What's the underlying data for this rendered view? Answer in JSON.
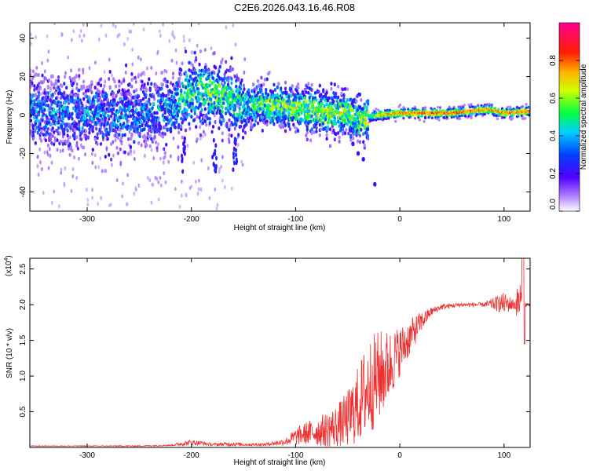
{
  "title": "C2E6.2026.043.16.46.R08",
  "chart_data": [
    {
      "type": "heatmap",
      "name": "spectrogram",
      "xlabel": "Height of straight line (km)",
      "ylabel": "Frequency (Hz)",
      "xlim": [
        -355,
        125
      ],
      "ylim": [
        -50,
        48
      ],
      "x_ticks": [
        -300,
        -200,
        -100,
        0,
        100
      ],
      "x_tick_labels": [
        "-300",
        "-200",
        "-100",
        "0",
        "100"
      ],
      "y_ticks": [
        -40,
        -20,
        0,
        20,
        40
      ],
      "y_tick_labels": [
        "-40",
        "-20",
        "0",
        "20",
        "40"
      ],
      "colorbar": {
        "label": "Normalized spectral amplitude",
        "range": [
          0,
          1
        ],
        "ticks": [
          0.0,
          0.2,
          0.4,
          0.6,
          0.8
        ],
        "tick_labels": [
          "0.0",
          "0.2",
          "0.4",
          "0.6",
          "0.8"
        ],
        "colors": [
          "#ffffff",
          "#7f00ff",
          "#0000ff",
          "#00c8ff",
          "#00ff00",
          "#ffff00",
          "#ff8000",
          "#ff0000",
          "#ff0080"
        ]
      },
      "ridge": [
        {
          "x": -350,
          "f": 2,
          "amp": 0.25
        },
        {
          "x": -300,
          "f": 1,
          "amp": 0.25
        },
        {
          "x": -250,
          "f": 1,
          "amp": 0.25
        },
        {
          "x": -215,
          "f": 3,
          "amp": 0.3
        },
        {
          "x": -205,
          "f": 11,
          "amp": 0.42
        },
        {
          "x": -190,
          "f": 12,
          "amp": 0.45
        },
        {
          "x": -170,
          "f": 10,
          "amp": 0.45
        },
        {
          "x": -150,
          "f": 4,
          "amp": 0.4
        },
        {
          "x": -130,
          "f": 6,
          "amp": 0.45
        },
        {
          "x": -110,
          "f": 4,
          "amp": 0.5
        },
        {
          "x": -90,
          "f": 3,
          "amp": 0.5
        },
        {
          "x": -70,
          "f": 1,
          "amp": 0.5
        },
        {
          "x": -50,
          "f": 1,
          "amp": 0.5
        },
        {
          "x": -40,
          "f": -3,
          "amp": 0.45
        },
        {
          "x": -30,
          "f": -1,
          "amp": 0.55
        },
        {
          "x": -20,
          "f": 0,
          "amp": 0.75
        },
        {
          "x": 0,
          "f": 1,
          "amp": 0.82
        },
        {
          "x": 50,
          "f": 1,
          "amp": 0.85
        },
        {
          "x": 85,
          "f": 3,
          "amp": 0.8
        },
        {
          "x": 100,
          "f": 1,
          "amp": 0.82
        },
        {
          "x": 125,
          "f": 2,
          "amp": 0.82
        }
      ]
    },
    {
      "type": "line",
      "name": "snr",
      "xlabel": "Height of straight line (km)",
      "ylabel": "SNR (10 * v/v)",
      "y_scale_label": "(x10",
      "y_scale_exponent": "4",
      "y_scale_suffix": ")",
      "xlim": [
        -355,
        125
      ],
      "ylim": [
        0,
        2.65
      ],
      "x_ticks": [
        -300,
        -200,
        -100,
        0,
        100
      ],
      "x_tick_labels": [
        "-300",
        "-200",
        "-100",
        "0",
        "100"
      ],
      "y_ticks": [
        0.5,
        1.0,
        1.5,
        2.0,
        2.5
      ],
      "y_tick_labels": [
        "0.5",
        "1.0",
        "1.5",
        "2.0",
        "2.5"
      ],
      "color": "#ee3030",
      "series_envelope": {
        "x": [
          -355,
          -300,
          -250,
          -220,
          -210,
          -200,
          -190,
          -180,
          -160,
          -150,
          -130,
          -110,
          -100,
          -90,
          -80,
          -70,
          -60,
          -50,
          -40,
          -30,
          -20,
          -10,
          0,
          10,
          20,
          30,
          40,
          60,
          80,
          100,
          110,
          115,
          120,
          125
        ],
        "mean": [
          0.02,
          0.02,
          0.02,
          0.03,
          0.05,
          0.07,
          0.06,
          0.04,
          0.05,
          0.04,
          0.04,
          0.08,
          0.15,
          0.2,
          0.22,
          0.25,
          0.3,
          0.4,
          0.6,
          0.85,
          1.0,
          1.15,
          1.35,
          1.55,
          1.75,
          1.9,
          1.97,
          2.0,
          2.0,
          2.02,
          2.0,
          2.05,
          2.0,
          2.0
        ],
        "noise": [
          0.005,
          0.005,
          0.008,
          0.01,
          0.03,
          0.04,
          0.03,
          0.02,
          0.03,
          0.02,
          0.02,
          0.05,
          0.12,
          0.16,
          0.2,
          0.25,
          0.3,
          0.4,
          0.55,
          0.7,
          0.65,
          0.5,
          0.35,
          0.25,
          0.15,
          0.06,
          0.04,
          0.03,
          0.03,
          0.15,
          0.08,
          0.35,
          0.05,
          0.01
        ]
      }
    }
  ]
}
